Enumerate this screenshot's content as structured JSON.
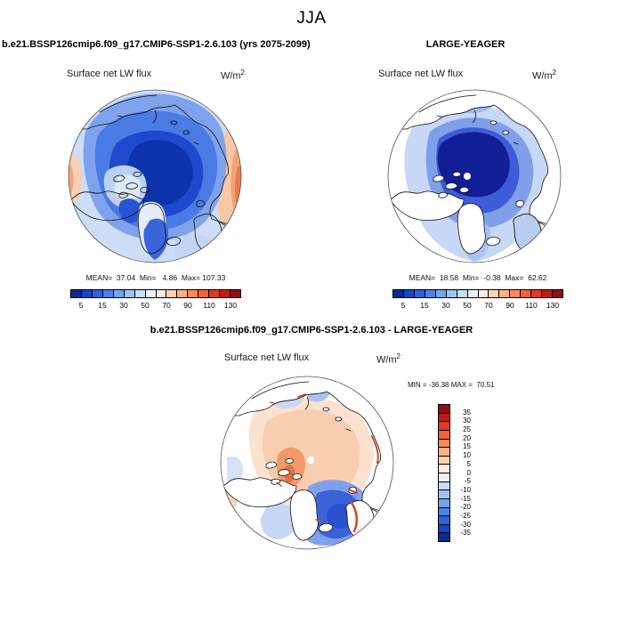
{
  "season_title": "JJA",
  "field_label": "Surface net LW flux",
  "units_base": "W/m",
  "units_exp": "2",
  "model_panel": {
    "header": "b.e21.BSSP126cmip6.f09_g17.CMIP6-SSP1-2.6.103 (yrs 2075-2099)",
    "stats": "MEAN=  37.04  Min=   4.86  Max= 107.33"
  },
  "obs_panel": {
    "header": "LARGE-YEAGER",
    "stats": "MEAN=  18.58  Min=  -0.38  Max=  62.62"
  },
  "diff_panel": {
    "header": "b.e21.BSSP126cmip6.f09_g17.CMIP6-SSP1-2.6.103 - LARGE-YEAGER",
    "stats": "MIN = -36.38 MAX =  70.51"
  },
  "flux_colorbar": {
    "ticks": [
      "5",
      "15",
      "30",
      "50",
      "70",
      "90",
      "110",
      "130"
    ],
    "colors": [
      "#0a2c8c",
      "#1646c6",
      "#2a63dc",
      "#4a83e6",
      "#74a5ec",
      "#9fc3f1",
      "#c7dcf6",
      "#e8f1fb",
      "#fdeadc",
      "#fbd3b4",
      "#fcb187",
      "#fb8a55",
      "#f2633b",
      "#dd3a26",
      "#bd1c16",
      "#920e12"
    ]
  },
  "diff_colorbar": {
    "labels": [
      "35",
      "30",
      "25",
      "20",
      "15",
      "10",
      "5",
      "0",
      "-5",
      "-10",
      "-15",
      "-20",
      "-25",
      "-30",
      "-35"
    ],
    "colors": [
      "#920e12",
      "#bd1c16",
      "#dd3a26",
      "#f2633b",
      "#fb8a55",
      "#fcb187",
      "#fbd3b4",
      "#fdeadc",
      "#e8f1fb",
      "#c7dcf6",
      "#9fc3f1",
      "#74a5ec",
      "#4a83e6",
      "#2a63dc",
      "#1646c6",
      "#0a2c8c"
    ]
  },
  "chart_data": [
    {
      "type": "heatmap",
      "panel": "model",
      "season": "JJA",
      "title": "b.e21.BSSP126cmip6.f09_g17.CMIP6-SSP1-2.6.103 (yrs 2075-2099)",
      "variable": "Surface net LW flux",
      "units": "W/m2",
      "projection": "north-polar-stereographic",
      "stats": {
        "mean": 37.04,
        "min": 4.86,
        "max": 107.33
      },
      "levels": [
        5,
        10,
        15,
        20,
        30,
        40,
        50,
        60,
        70,
        80,
        90,
        100,
        110,
        120,
        130
      ],
      "tick_labels": [
        5,
        15,
        30,
        50,
        70,
        90,
        110,
        130
      ],
      "colormap": "blue-to-red",
      "legend_position": "below"
    },
    {
      "type": "heatmap",
      "panel": "observations",
      "season": "JJA",
      "title": "LARGE-YEAGER",
      "variable": "Surface net LW flux",
      "units": "W/m2",
      "projection": "north-polar-stereographic",
      "stats": {
        "mean": 18.58,
        "min": -0.38,
        "max": 62.62
      },
      "levels": [
        5,
        10,
        15,
        20,
        30,
        40,
        50,
        60,
        70,
        80,
        90,
        100,
        110,
        120,
        130
      ],
      "tick_labels": [
        5,
        15,
        30,
        50,
        70,
        90,
        110,
        130
      ],
      "colormap": "blue-to-red",
      "legend_position": "below"
    },
    {
      "type": "heatmap",
      "panel": "difference",
      "season": "JJA",
      "title": "b.e21.BSSP126cmip6.f09_g17.CMIP6-SSP1-2.6.103 - LARGE-YEAGER",
      "variable": "Surface net LW flux",
      "units": "W/m2",
      "projection": "north-polar-stereographic",
      "stats": {
        "min": -36.38,
        "max": 70.51
      },
      "levels": [
        -35,
        -30,
        -25,
        -20,
        -15,
        -10,
        -5,
        0,
        5,
        10,
        15,
        20,
        25,
        30,
        35
      ],
      "colormap": "blue-to-red",
      "legend_position": "right"
    }
  ]
}
